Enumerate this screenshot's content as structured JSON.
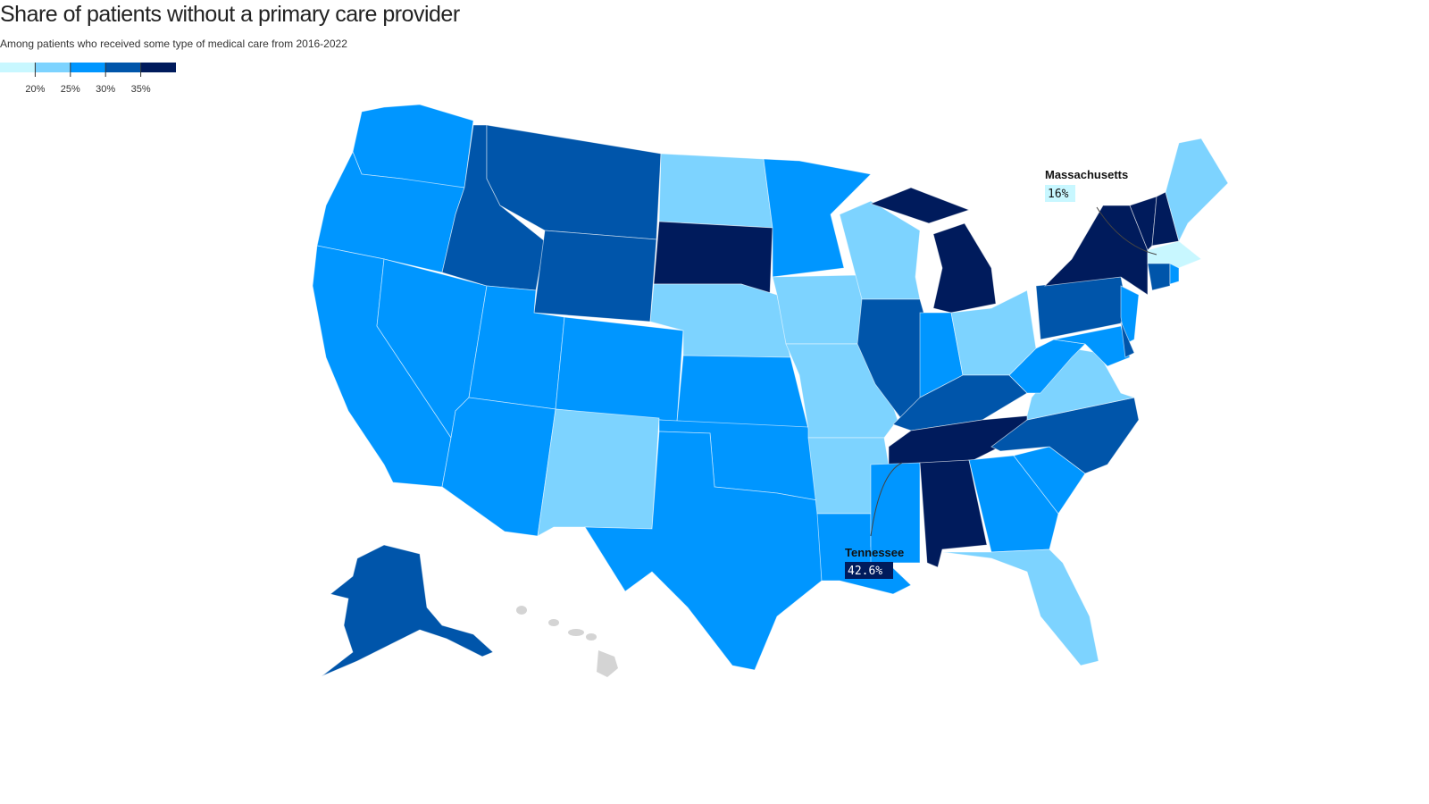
{
  "title": "Share of patients without a primary care provider",
  "subtitle": "Among patients who received some type of medical care from 2016-2022",
  "legend": {
    "range": [
      15,
      40
    ],
    "colors": [
      "#c8f7ff",
      "#7dd3ff",
      "#0096ff",
      "#0055aa",
      "#001b5c"
    ],
    "ticks": [
      {
        "value": 20,
        "label": "20%"
      },
      {
        "value": 25,
        "label": "25%"
      },
      {
        "value": 30,
        "label": "30%"
      },
      {
        "value": 35,
        "label": "35%"
      }
    ]
  },
  "annotations": [
    {
      "label": "Massachusetts",
      "value": 16,
      "value_label": "16%"
    },
    {
      "label": "Tennessee",
      "value": 42.6,
      "value_label": "42.6%"
    }
  ]
}
